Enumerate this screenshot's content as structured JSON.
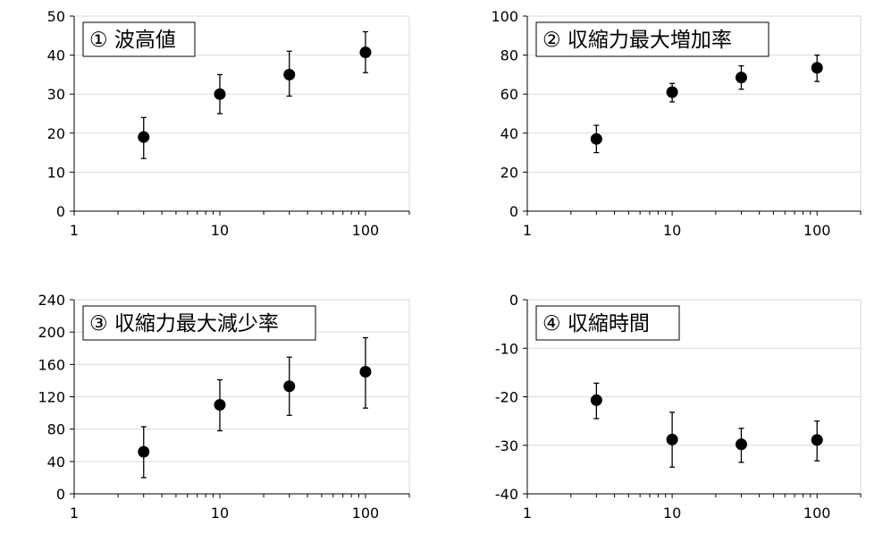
{
  "chart_data": [
    {
      "type": "scatter",
      "title": "① 波高値",
      "x_scale": "log",
      "xlim": [
        1,
        200
      ],
      "x_tick_labels": [
        "1",
        "10",
        "100"
      ],
      "ylim": [
        0,
        50
      ],
      "y_tick_labels": [
        "0",
        "10",
        "20",
        "30",
        "40",
        "50"
      ],
      "grid": "horizontal",
      "error_bars": true,
      "points": [
        {
          "x": 3,
          "y": 19,
          "err_low": 13.5,
          "err_high": 24
        },
        {
          "x": 10,
          "y": 30,
          "err_low": 25,
          "err_high": 35
        },
        {
          "x": 30,
          "y": 35,
          "err_low": 29.5,
          "err_high": 41
        },
        {
          "x": 100,
          "y": 40.7,
          "err_low": 35.5,
          "err_high": 46
        }
      ]
    },
    {
      "type": "scatter",
      "title": "② 収縮力最大増加率",
      "x_scale": "log",
      "xlim": [
        1,
        200
      ],
      "x_tick_labels": [
        "1",
        "10",
        "100"
      ],
      "ylim": [
        0,
        100
      ],
      "y_tick_labels": [
        "0",
        "20",
        "40",
        "60",
        "80",
        "100"
      ],
      "grid": "horizontal",
      "error_bars": true,
      "points": [
        {
          "x": 3,
          "y": 37,
          "err_low": 30,
          "err_high": 44
        },
        {
          "x": 10,
          "y": 61,
          "err_low": 56,
          "err_high": 65.5
        },
        {
          "x": 30,
          "y": 68.5,
          "err_low": 62.5,
          "err_high": 74.5
        },
        {
          "x": 100,
          "y": 73.5,
          "err_low": 66.5,
          "err_high": 80
        }
      ]
    },
    {
      "type": "scatter",
      "title": "③ 収縮力最大減少率",
      "x_scale": "log",
      "xlim": [
        1,
        200
      ],
      "x_tick_labels": [
        "1",
        "10",
        "100"
      ],
      "ylim": [
        0,
        240
      ],
      "y_tick_labels": [
        "0",
        "40",
        "80",
        "120",
        "160",
        "200",
        "240"
      ],
      "grid": "horizontal",
      "error_bars": true,
      "points": [
        {
          "x": 3,
          "y": 52,
          "err_low": 20,
          "err_high": 83
        },
        {
          "x": 10,
          "y": 110,
          "err_low": 78,
          "err_high": 141
        },
        {
          "x": 30,
          "y": 133,
          "err_low": 97,
          "err_high": 169
        },
        {
          "x": 100,
          "y": 151,
          "err_low": 106,
          "err_high": 193
        }
      ]
    },
    {
      "type": "scatter",
      "title": "④ 収縮時間",
      "x_scale": "log",
      "xlim": [
        1,
        200
      ],
      "x_tick_labels": [
        "1",
        "10",
        "100"
      ],
      "ylim": [
        -40,
        0
      ],
      "y_tick_labels": [
        "-40",
        "-30",
        "-20",
        "-10",
        "0"
      ],
      "grid": "horizontal",
      "error_bars": true,
      "points": [
        {
          "x": 3,
          "y": -20.7,
          "err_low": -24.5,
          "err_high": -17.2
        },
        {
          "x": 10,
          "y": -28.8,
          "err_low": -34.5,
          "err_high": -23.2
        },
        {
          "x": 30,
          "y": -29.8,
          "err_low": -33.5,
          "err_high": -26.5
        },
        {
          "x": 100,
          "y": -28.9,
          "err_low": -33.2,
          "err_high": -25
        }
      ]
    }
  ]
}
